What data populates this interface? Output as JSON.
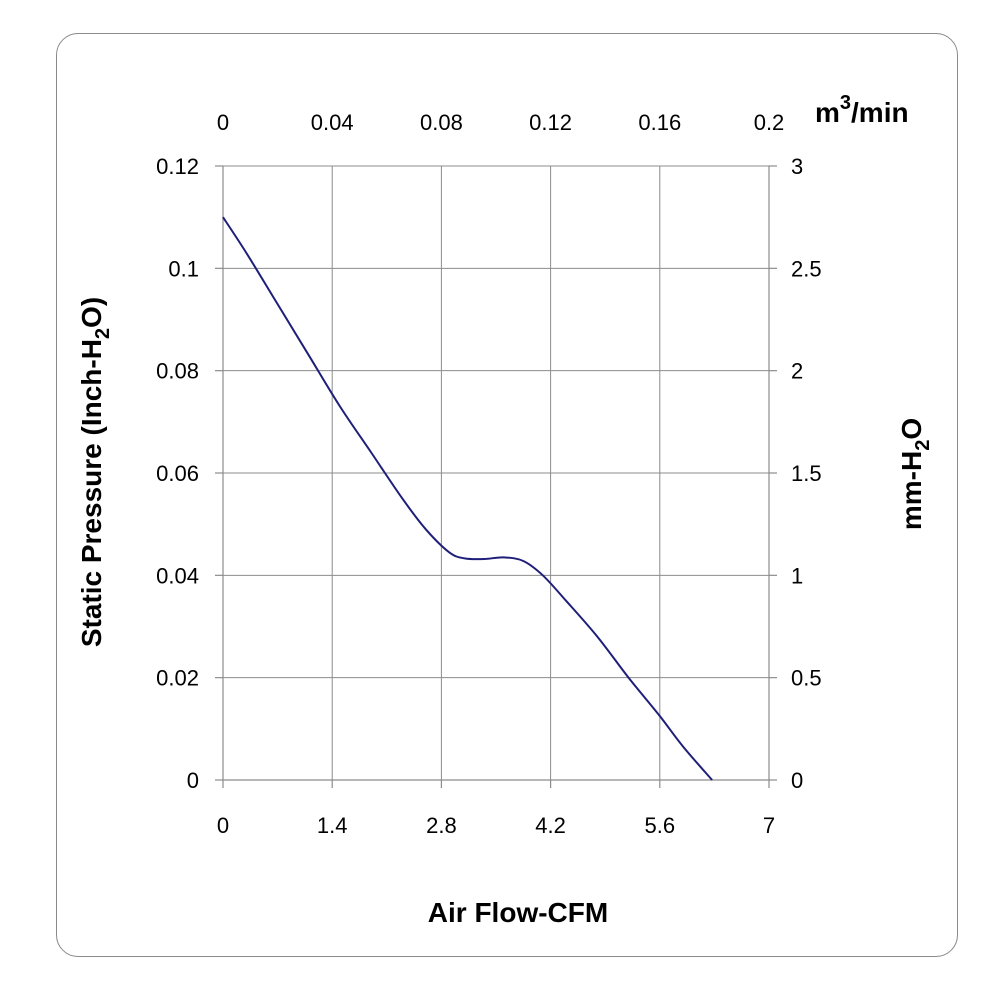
{
  "chart_data": {
    "type": "line",
    "x_axis_bottom": {
      "label": "Air Flow-CFM",
      "range": [
        0,
        7
      ],
      "ticks": [
        "0",
        "1.4",
        "2.8",
        "4.2",
        "5.6",
        "7"
      ]
    },
    "x_axis_top": {
      "unit_base": "m",
      "unit_sup": "3",
      "unit_rest": "/min",
      "range": [
        0,
        0.2
      ],
      "ticks": [
        "0",
        "0.04",
        "0.08",
        "0.12",
        "0.16",
        "0.2"
      ]
    },
    "y_axis_left": {
      "label_pre": "Static Pressure (Inch-H",
      "label_sub": "2",
      "label_post": "O)",
      "range": [
        0,
        0.12
      ],
      "ticks": [
        "0",
        "0.02",
        "0.04",
        "0.06",
        "0.08",
        "0.1",
        "0.12"
      ]
    },
    "y_axis_right": {
      "label_pre": "mm-H",
      "label_sub": "2",
      "label_post": "O",
      "range": [
        0,
        3
      ],
      "ticks": [
        "0",
        "0.5",
        "1",
        "1.5",
        "2",
        "2.5",
        "3"
      ]
    },
    "grid": true,
    "series": [
      {
        "color": "#1f1f7a",
        "points": [
          [
            0.0,
            0.11
          ],
          [
            0.3,
            0.103
          ],
          [
            0.7,
            0.093
          ],
          [
            1.1,
            0.083
          ],
          [
            1.5,
            0.073
          ],
          [
            1.9,
            0.064
          ],
          [
            2.3,
            0.055
          ],
          [
            2.6,
            0.049
          ],
          [
            2.9,
            0.0445
          ],
          [
            3.1,
            0.0433
          ],
          [
            3.35,
            0.0432
          ],
          [
            3.6,
            0.0435
          ],
          [
            3.85,
            0.0428
          ],
          [
            4.1,
            0.04
          ],
          [
            4.4,
            0.035
          ],
          [
            4.8,
            0.028
          ],
          [
            5.2,
            0.02
          ],
          [
            5.6,
            0.0125
          ],
          [
            5.9,
            0.0065
          ],
          [
            6.27,
            0.0
          ]
        ]
      }
    ]
  }
}
